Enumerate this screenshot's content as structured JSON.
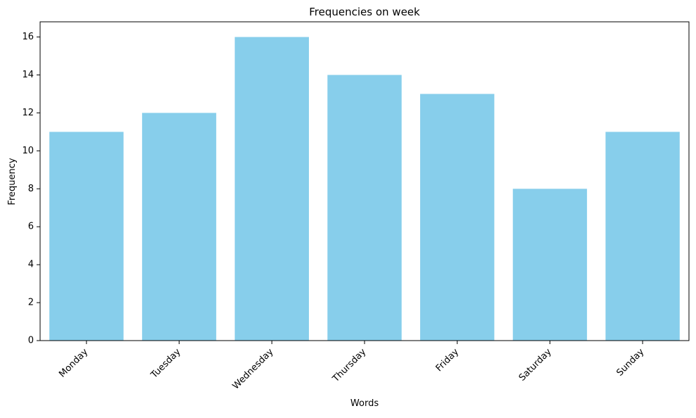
{
  "chart_data": {
    "type": "bar",
    "title": "Frequencies on week",
    "xlabel": "Words",
    "ylabel": "Frequency",
    "categories": [
      "Monday",
      "Tuesday",
      "Wednesday",
      "Thursday",
      "Friday",
      "Saturday",
      "Sunday"
    ],
    "values": [
      11,
      12,
      16,
      14,
      13,
      8,
      11
    ],
    "ylim": [
      0,
      16.8
    ],
    "yticks": [
      0,
      2,
      4,
      6,
      8,
      10,
      12,
      14,
      16
    ],
    "grid": false,
    "colors": {
      "bar": "#87ceeb",
      "axis": "#000000",
      "background": "#ffffff"
    }
  }
}
